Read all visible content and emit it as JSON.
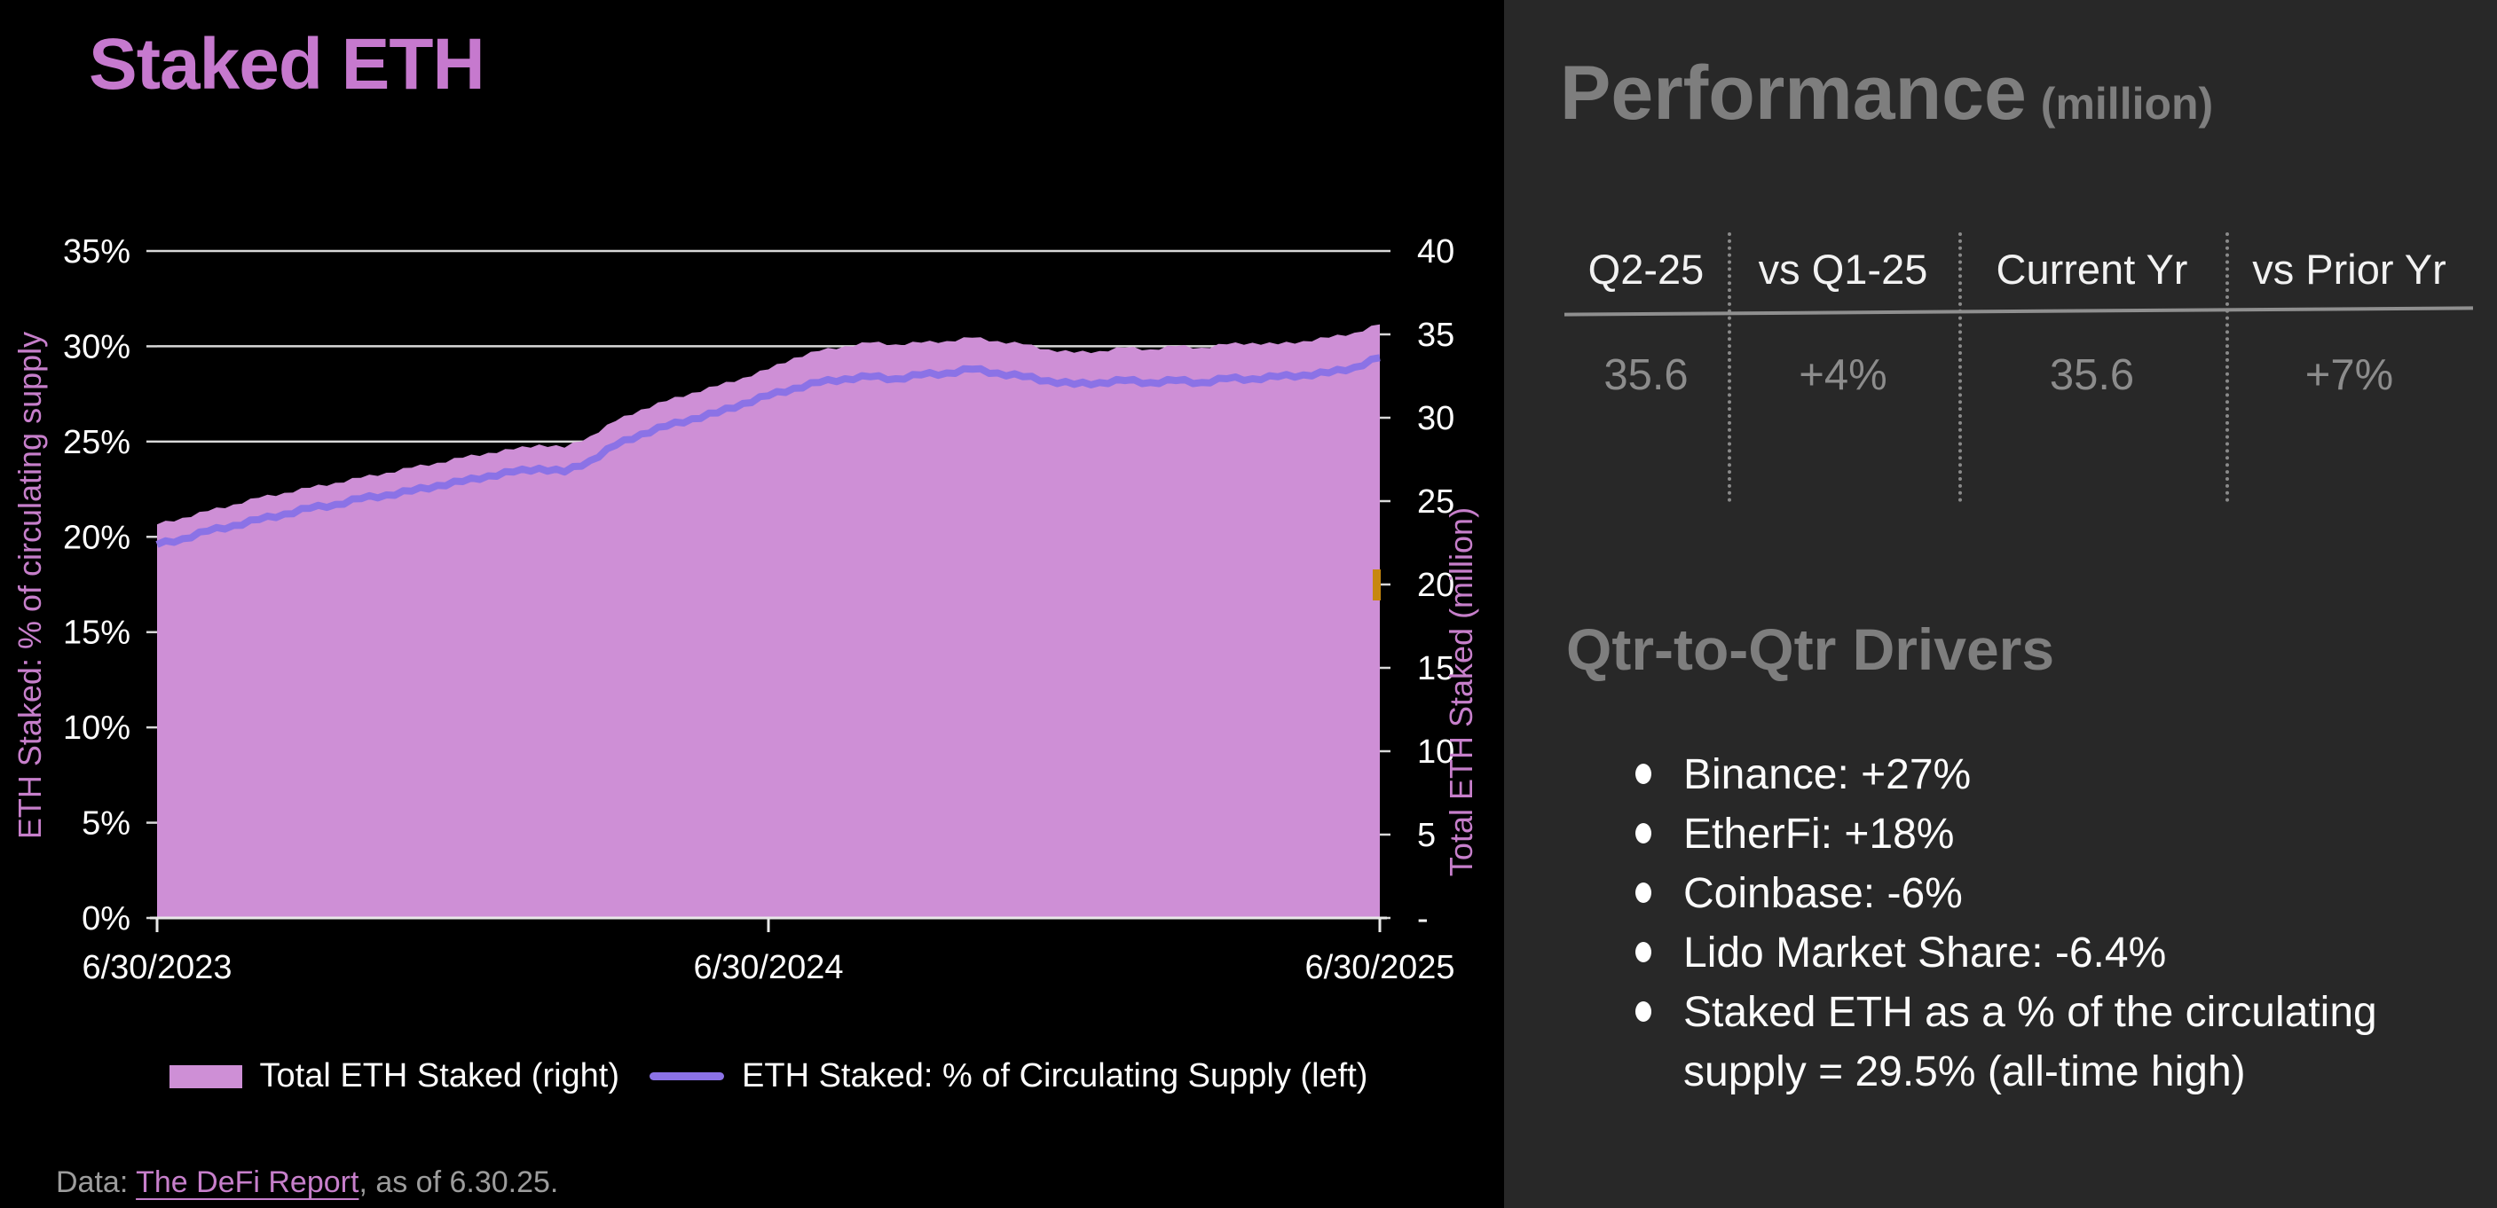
{
  "chart_panel": {
    "title": "Staked ETH",
    "footer": {
      "prefix": "Data: ",
      "link_text": "The DeFi Report",
      "suffix": ", as of 6.30.25."
    }
  },
  "chart_data": {
    "type": "area",
    "title": "Staked ETH",
    "x_tick_labels": [
      "6/30/2023",
      "6/30/2024",
      "6/30/2025"
    ],
    "left_axis": {
      "title": "ETH Staked: % of circulating supply",
      "min": 0,
      "max": 35,
      "tick_step": 5,
      "tick_labels": [
        "0%",
        "5%",
        "10%",
        "15%",
        "20%",
        "25%",
        "30%",
        "35%"
      ]
    },
    "right_axis": {
      "title": "Total ETH Staked (million)",
      "min": 0,
      "max": 40,
      "tick_step": 5,
      "tick_labels": [
        "-",
        "5",
        "10",
        "15",
        "20",
        "25",
        "30",
        "35",
        "40"
      ]
    },
    "grid": true,
    "legend_position": "bottom",
    "colors": {
      "grid": "#D9D9D9",
      "axis_text": "#FFFFFF",
      "axis_title": "#C77FCB",
      "area": "#CE8FD6",
      "line": "#8B72E6",
      "marker": "#C7870F"
    },
    "series": [
      {
        "name": "Total ETH Staked (right)",
        "type": "area",
        "axis": "right",
        "color": "#CE8FD6",
        "values": [
          23.6,
          24.0,
          24.4,
          24.8,
          25.2,
          25.5,
          25.8,
          26.1,
          26.4,
          26.7,
          27.0,
          27.3,
          27.6,
          27.9,
          28.1,
          28.4,
          28.2,
          28.9,
          29.8,
          30.5,
          31.0,
          31.5,
          31.9,
          32.4,
          32.9,
          33.6,
          34.0,
          34.3,
          34.5,
          34.4,
          34.5,
          34.6,
          34.8,
          34.6,
          34.4,
          34.1,
          33.9,
          34.0,
          34.2,
          34.1,
          34.3,
          34.2,
          34.4,
          34.5,
          34.4,
          34.6,
          34.8,
          35.1,
          35.6
        ]
      },
      {
        "name": "ETH Staked: % of Circulating Supply (left)",
        "type": "line",
        "axis": "left",
        "color": "#8B72E6",
        "values": [
          19.6,
          19.9,
          20.3,
          20.6,
          20.9,
          21.2,
          21.5,
          21.7,
          22.0,
          22.2,
          22.4,
          22.7,
          22.9,
          23.2,
          23.4,
          23.6,
          23.4,
          24.0,
          24.8,
          25.4,
          25.8,
          26.2,
          26.5,
          27.0,
          27.4,
          27.8,
          28.1,
          28.3,
          28.4,
          28.3,
          28.5,
          28.6,
          28.8,
          28.6,
          28.4,
          28.2,
          28.0,
          28.1,
          28.2,
          28.1,
          28.2,
          28.1,
          28.3,
          28.3,
          28.4,
          28.5,
          28.6,
          28.9,
          29.4
        ]
      }
    ],
    "annotation_marker": {
      "axis": "right",
      "value": 20,
      "color": "#C7870F"
    }
  },
  "right_panel": {
    "heading": "Performance",
    "heading_unit": "(million)",
    "table": {
      "columns": [
        "Q2-25",
        "vs Q1-25",
        "Current Yr",
        "vs Prior Yr"
      ],
      "values": [
        "35.6",
        "+4%",
        "35.6",
        "+7%"
      ]
    },
    "drivers_heading": "Qtr-to-Qtr Drivers",
    "drivers": [
      "Binance: +27%",
      "EtherFi: +18%",
      "Coinbase: -6%",
      "Lido Market Share: -6.4%",
      "Staked ETH as a % of the circulating supply = 29.5% (all-time high)"
    ]
  }
}
